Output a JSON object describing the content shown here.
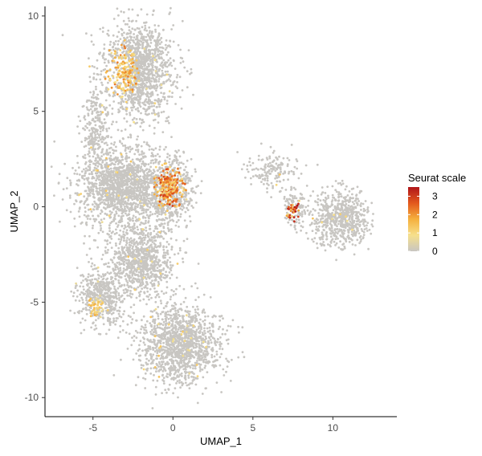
{
  "chart_data": {
    "type": "scatter",
    "title": "",
    "xlabel": "UMAP_1",
    "ylabel": "UMAP_2",
    "xlim": [
      -8,
      14
    ],
    "ylim": [
      -11,
      10.5
    ],
    "x_ticks": [
      -5,
      0,
      5,
      10
    ],
    "y_ticks": [
      -10,
      -5,
      0,
      5,
      10
    ],
    "x_tick_labels": [
      "-5",
      "0",
      "5",
      "10"
    ],
    "y_tick_labels": [
      "-10",
      "-5",
      "0",
      "5",
      "10"
    ],
    "grid": false,
    "legend": {
      "title": "Seurat scale",
      "position": "right",
      "type": "colorbar",
      "range": [
        0,
        3.5
      ],
      "ticks": [
        0,
        1,
        2,
        3
      ],
      "tick_labels": [
        "0",
        "1",
        "2",
        "3"
      ],
      "colors": [
        "#c8c6c2",
        "#f6e08c",
        "#f5b03d",
        "#e3581d",
        "#b0161a"
      ]
    },
    "color_variable": "Seurat scale",
    "clusters": [
      {
        "name": "upper-left",
        "center": [
          -2.2,
          7.2
        ],
        "spread": [
          1.4,
          1.6
        ],
        "n": 1400
      },
      {
        "name": "upper-left-arc",
        "center": [
          -4.8,
          4.0
        ],
        "spread": [
          0.5,
          1.4
        ],
        "n": 260
      },
      {
        "name": "mid-left",
        "center": [
          -3.2,
          1.0
        ],
        "spread": [
          1.6,
          1.3
        ],
        "n": 1500
      },
      {
        "name": "mid-right",
        "center": [
          -0.2,
          0.9
        ],
        "spread": [
          0.9,
          1.0
        ],
        "n": 700
      },
      {
        "name": "lower-mid",
        "center": [
          -2.0,
          -2.8
        ],
        "spread": [
          1.3,
          1.2
        ],
        "n": 900
      },
      {
        "name": "lower-left",
        "center": [
          -4.5,
          -4.8
        ],
        "spread": [
          0.9,
          0.9
        ],
        "n": 500
      },
      {
        "name": "bottom",
        "center": [
          0.5,
          -7.2
        ],
        "spread": [
          1.6,
          1.3
        ],
        "n": 1300
      },
      {
        "name": "right-island-body",
        "center": [
          10.5,
          -0.6
        ],
        "spread": [
          1.1,
          0.9
        ],
        "n": 650
      },
      {
        "name": "right-island-stem",
        "center": [
          6.3,
          1.9
        ],
        "spread": [
          1.0,
          0.6
        ],
        "n": 160
      },
      {
        "name": "right-island-left",
        "center": [
          7.6,
          -0.2
        ],
        "spread": [
          0.4,
          0.6
        ],
        "n": 140
      }
    ],
    "highlight_regions": [
      {
        "name": "upper-left-hotspot",
        "center": [
          -3.3,
          7.0
        ],
        "spread": [
          0.8,
          1.0
        ],
        "mean_value": 1.8
      },
      {
        "name": "mid-right-hotspot",
        "center": [
          -0.2,
          1.1
        ],
        "spread": [
          0.7,
          0.9
        ],
        "mean_value": 2.3
      },
      {
        "name": "right-island-hotspot",
        "center": [
          7.5,
          -0.2
        ],
        "spread": [
          0.35,
          0.4
        ],
        "mean_value": 2.8
      },
      {
        "name": "lower-left-hotspot",
        "center": [
          -4.8,
          -5.3
        ],
        "spread": [
          0.4,
          0.4
        ],
        "mean_value": 1.4
      }
    ]
  }
}
